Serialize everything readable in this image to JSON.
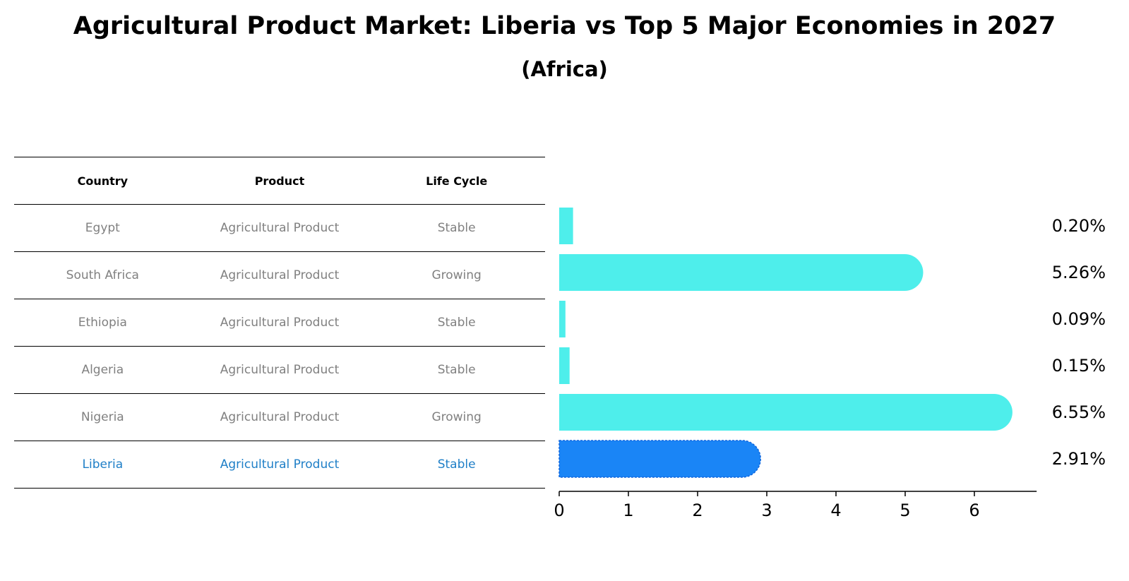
{
  "title": "Agricultural Product Market: Liberia vs Top 5 Major Economies in 2027",
  "subtitle": "(Africa)",
  "table": {
    "headers": [
      "Country",
      "Product",
      "Life Cycle"
    ],
    "rows": [
      [
        "Egypt",
        "Agricultural Product",
        "Stable"
      ],
      [
        "South Africa",
        "Agricultural Product",
        "Growing"
      ],
      [
        "Ethiopia",
        "Agricultural Product",
        "Stable"
      ],
      [
        "Algeria",
        "Agricultural Product",
        "Stable"
      ],
      [
        "Nigeria",
        "Agricultural Product",
        "Growing"
      ],
      [
        "Liberia",
        "Agricultural Product",
        "Stable"
      ]
    ],
    "highlight_row": 5
  },
  "colors": {
    "bar": "#4eeeeb",
    "highlight_bar": "#1a85f6",
    "highlight_text": "#1f7fc7",
    "muted_text": "#808080"
  },
  "chart_data": {
    "type": "bar",
    "orientation": "horizontal",
    "categories": [
      "Egypt",
      "South Africa",
      "Ethiopia",
      "Algeria",
      "Nigeria",
      "Liberia"
    ],
    "values": [
      0.2,
      5.26,
      0.09,
      0.15,
      6.55,
      2.91
    ],
    "value_labels": [
      "0.20%",
      "5.26%",
      "0.09%",
      "0.15%",
      "6.55%",
      "2.91%"
    ],
    "highlight_index": 5,
    "xlim": [
      0,
      6.9
    ],
    "xticks": [
      0,
      1,
      2,
      3,
      4,
      5,
      6
    ],
    "xlabel": "",
    "ylabel": "",
    "grid": false
  }
}
